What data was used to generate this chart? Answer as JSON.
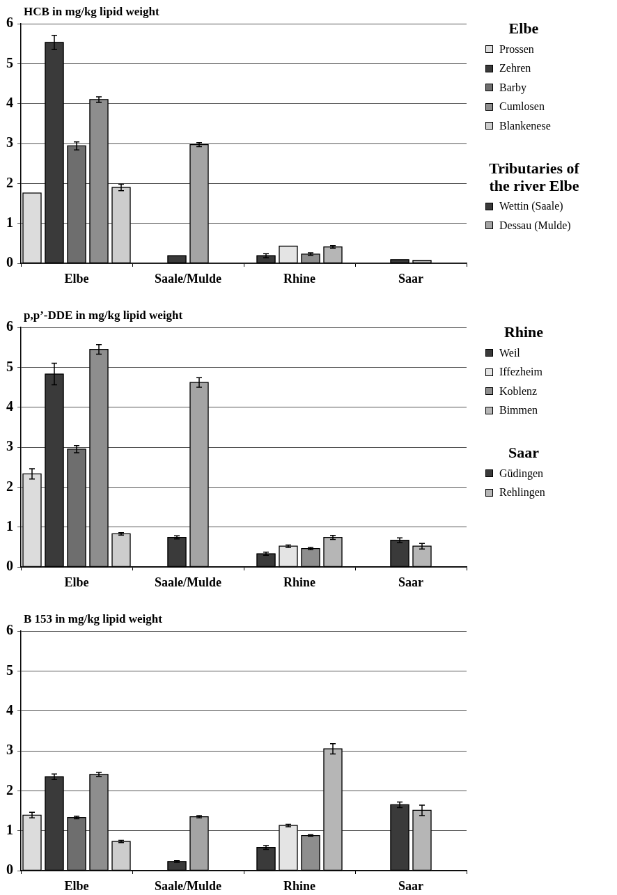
{
  "chart_data": [
    {
      "type": "bar",
      "title": "HCB in mg/kg lipid weight",
      "categories": [
        "Elbe",
        "Saale/Mulde",
        "Rhine",
        "Saar"
      ],
      "ylim": [
        0,
        6
      ],
      "yticks": [
        0,
        1,
        2,
        3,
        4,
        5,
        6
      ],
      "grid": "y",
      "legend": "right",
      "annotations": [
        "Elbe",
        "Tributaries of the river Elbe"
      ],
      "series": [
        {
          "name": "Prossen",
          "color": "#dcdcdc",
          "values": [
            1.76,
            null,
            null,
            null
          ]
        },
        {
          "name": "Zehren",
          "color": "#3a3a3a",
          "values": [
            5.53,
            null,
            null,
            null
          ],
          "errors": [
            0.18,
            null,
            null,
            null
          ]
        },
        {
          "name": "Barby",
          "color": "#6e6e6e",
          "values": [
            2.94,
            null,
            null,
            null
          ],
          "errors": [
            0.1,
            null,
            null,
            null
          ]
        },
        {
          "name": "Cumlosen",
          "color": "#8e8e8e",
          "values": [
            4.1,
            null,
            null,
            null
          ],
          "errors": [
            0.07,
            null,
            null,
            null
          ]
        },
        {
          "name": "Blankenese",
          "color": "#cdcdcd",
          "values": [
            1.9,
            null,
            null,
            null
          ],
          "errors": [
            0.08,
            null,
            null,
            null
          ]
        },
        {
          "name": "Wettin (Saale)",
          "color": "#3a3a3a",
          "values": [
            null,
            0.19,
            null,
            null
          ]
        },
        {
          "name": "Dessau (Mulde)",
          "color": "#a4a4a4",
          "values": [
            null,
            2.97,
            null,
            null
          ],
          "errors": [
            null,
            0.05,
            null,
            null
          ]
        },
        {
          "color": "#3a3a3a",
          "values": [
            null,
            null,
            0.19,
            null
          ],
          "errors": [
            null,
            null,
            0.05,
            null
          ]
        },
        {
          "color": "#e4e4e4",
          "values": [
            null,
            null,
            0.43,
            null
          ]
        },
        {
          "color": "#8e8e8e",
          "values": [
            null,
            null,
            0.23,
            null
          ],
          "errors": [
            null,
            null,
            0.03,
            null
          ]
        },
        {
          "color": "#b6b6b6",
          "values": [
            null,
            null,
            0.41,
            null
          ],
          "errors": [
            null,
            null,
            0.03,
            null
          ]
        },
        {
          "color": "#3a3a3a",
          "values": [
            null,
            null,
            null,
            0.09
          ]
        },
        {
          "color": "#b6b6b6",
          "values": [
            null,
            null,
            null,
            0.07
          ]
        }
      ]
    },
    {
      "type": "bar",
      "title": "p,p’-DDE in mg/kg lipid weight",
      "categories": [
        "Elbe",
        "Saale/Mulde",
        "Rhine",
        "Saar"
      ],
      "ylim": [
        0,
        6
      ],
      "yticks": [
        0,
        1,
        2,
        3,
        4,
        5,
        6
      ],
      "grid": "y",
      "legend": "right",
      "annotations": [
        "Rhine",
        "Saar"
      ],
      "series": [
        {
          "color": "#dcdcdc",
          "values": [
            2.33,
            null,
            null,
            null
          ],
          "errors": [
            0.13,
            null,
            null,
            null
          ]
        },
        {
          "color": "#3a3a3a",
          "values": [
            4.83,
            null,
            null,
            null
          ],
          "errors": [
            0.27,
            null,
            null,
            null
          ]
        },
        {
          "color": "#6e6e6e",
          "values": [
            2.95,
            null,
            null,
            null
          ],
          "errors": [
            0.09,
            null,
            null,
            null
          ]
        },
        {
          "color": "#8e8e8e",
          "values": [
            5.45,
            null,
            null,
            null
          ],
          "errors": [
            0.12,
            null,
            null,
            null
          ]
        },
        {
          "color": "#cdcdcd",
          "values": [
            0.83,
            null,
            null,
            null
          ],
          "errors": [
            0.03,
            null,
            null,
            null
          ]
        },
        {
          "color": "#3a3a3a",
          "values": [
            null,
            0.74,
            null,
            null
          ],
          "errors": [
            null,
            0.04,
            null,
            null
          ]
        },
        {
          "color": "#a4a4a4",
          "values": [
            null,
            4.62,
            null,
            null
          ],
          "errors": [
            null,
            0.12,
            null,
            null
          ]
        },
        {
          "name": "Weil",
          "color": "#3a3a3a",
          "values": [
            null,
            null,
            0.33,
            null
          ],
          "errors": [
            null,
            null,
            0.04,
            null
          ]
        },
        {
          "name": "Iffezheim",
          "color": "#e4e4e4",
          "values": [
            null,
            null,
            0.52,
            null
          ],
          "errors": [
            null,
            null,
            0.03,
            null
          ]
        },
        {
          "name": "Koblenz",
          "color": "#8e8e8e",
          "values": [
            null,
            null,
            0.46,
            null
          ],
          "errors": [
            null,
            null,
            0.03,
            null
          ]
        },
        {
          "name": "Bimmen",
          "color": "#b6b6b6",
          "values": [
            null,
            null,
            0.74,
            null
          ],
          "errors": [
            null,
            null,
            0.05,
            null
          ]
        },
        {
          "name": "Güdingen",
          "color": "#3a3a3a",
          "values": [
            null,
            null,
            null,
            0.67
          ],
          "errors": [
            null,
            null,
            null,
            0.06
          ]
        },
        {
          "name": "Rehlingen",
          "color": "#b6b6b6",
          "values": [
            null,
            null,
            null,
            0.52
          ],
          "errors": [
            null,
            null,
            null,
            0.07
          ]
        }
      ]
    },
    {
      "type": "bar",
      "title": "B 153 in mg/kg lipid weight",
      "categories": [
        "Elbe",
        "Saale/Mulde",
        "Rhine",
        "Saar"
      ],
      "ylim": [
        0,
        6
      ],
      "yticks": [
        0,
        1,
        2,
        3,
        4,
        5,
        6
      ],
      "grid": "y",
      "series": [
        {
          "color": "#dcdcdc",
          "values": [
            1.39,
            null,
            null,
            null
          ],
          "errors": [
            0.07,
            null,
            null,
            null
          ]
        },
        {
          "color": "#3a3a3a",
          "values": [
            2.35,
            null,
            null,
            null
          ],
          "errors": [
            0.07,
            null,
            null,
            null
          ]
        },
        {
          "color": "#6e6e6e",
          "values": [
            1.33,
            null,
            null,
            null
          ],
          "errors": [
            0.03,
            null,
            null,
            null
          ]
        },
        {
          "color": "#8e8e8e",
          "values": [
            2.41,
            null,
            null,
            null
          ],
          "errors": [
            0.05,
            null,
            null,
            null
          ]
        },
        {
          "color": "#cdcdcd",
          "values": [
            0.73,
            null,
            null,
            null
          ],
          "errors": [
            0.03,
            null,
            null,
            null
          ]
        },
        {
          "color": "#3a3a3a",
          "values": [
            null,
            0.23,
            null,
            null
          ],
          "errors": [
            null,
            0.02,
            null,
            null
          ]
        },
        {
          "color": "#a4a4a4",
          "values": [
            null,
            1.35,
            null,
            null
          ],
          "errors": [
            null,
            0.03,
            null,
            null
          ]
        },
        {
          "color": "#3a3a3a",
          "values": [
            null,
            null,
            0.58,
            null
          ],
          "errors": [
            null,
            null,
            0.05,
            null
          ]
        },
        {
          "color": "#e4e4e4",
          "values": [
            null,
            null,
            1.13,
            null
          ],
          "errors": [
            null,
            null,
            0.03,
            null
          ]
        },
        {
          "color": "#8e8e8e",
          "values": [
            null,
            null,
            0.88,
            null
          ],
          "errors": [
            null,
            null,
            0.02,
            null
          ]
        },
        {
          "color": "#b6b6b6",
          "values": [
            null,
            null,
            3.05,
            null
          ],
          "errors": [
            null,
            null,
            0.13,
            null
          ]
        },
        {
          "color": "#3a3a3a",
          "values": [
            null,
            null,
            null,
            1.65
          ],
          "errors": [
            null,
            null,
            null,
            0.07
          ]
        },
        {
          "color": "#b6b6b6",
          "values": [
            null,
            null,
            null,
            1.51
          ],
          "errors": [
            null,
            null,
            null,
            0.13
          ]
        }
      ]
    }
  ]
}
